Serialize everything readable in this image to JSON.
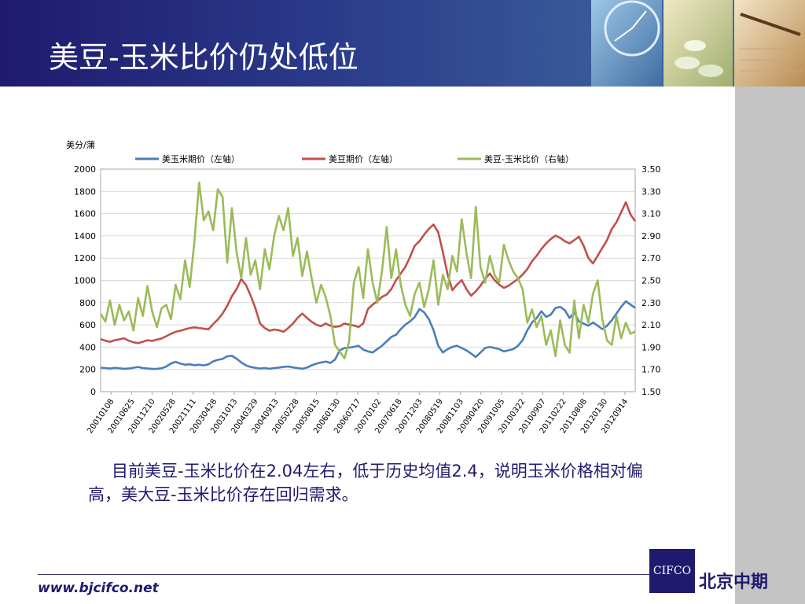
{
  "slide": {
    "title": "美豆-玉米比价仍处低位",
    "caption": "目前美豆-玉米比价在2.04左右，低于历史均值2.4，说明玉米价格相对偏高，美大豆-玉米比价存在回归需求。",
    "footer_url": "www.bjcifco.net",
    "logo_text": "CIFCO",
    "logo_name": "北京中期"
  },
  "chart_data": {
    "type": "line",
    "ylabel": "美分/蒲",
    "y_left": {
      "ylim": [
        0,
        2000
      ],
      "ticks": [
        0,
        200,
        400,
        600,
        800,
        1000,
        1200,
        1400,
        1600,
        1800,
        2000
      ]
    },
    "y_right": {
      "ylim": [
        1.5,
        3.5
      ],
      "ticks": [
        "1.50",
        "1.70",
        "1.90",
        "2.10",
        "2.30",
        "2.50",
        "2.70",
        "2.90",
        "3.10",
        "3.30",
        "3.50"
      ]
    },
    "x_ticks": [
      "20010108",
      "20010625",
      "20011210",
      "20020528",
      "20021111",
      "20030428",
      "20031013",
      "20040329",
      "20040913",
      "20050228",
      "20050815",
      "20060130",
      "20060717",
      "20070102",
      "20070618",
      "20071203",
      "20080519",
      "20081103",
      "20090420",
      "20091005",
      "20100322",
      "20100907",
      "20110222",
      "20110808",
      "20120130",
      "20120914"
    ],
    "grid": true,
    "legend_position": "top",
    "series": [
      {
        "name": "美玉米期价（左轴）",
        "axis": "left",
        "color": "#4a7ebb",
        "values": [
          215,
          212,
          208,
          214,
          210,
          206,
          208,
          215,
          222,
          212,
          208,
          204,
          206,
          210,
          226,
          254,
          268,
          252,
          242,
          246,
          238,
          242,
          236,
          246,
          272,
          286,
          294,
          318,
          322,
          296,
          262,
          236,
          222,
          214,
          208,
          212,
          206,
          212,
          216,
          222,
          226,
          218,
          212,
          206,
          216,
          236,
          252,
          262,
          270,
          258,
          288,
          372,
          392,
          396,
          402,
          412,
          378,
          362,
          352,
          382,
          412,
          452,
          492,
          512,
          562,
          602,
          632,
          672,
          742,
          712,
          652,
          552,
          412,
          352,
          382,
          402,
          412,
          392,
          372,
          342,
          312,
          352,
          392,
          402,
          392,
          382,
          362,
          372,
          382,
          412,
          462,
          552,
          622,
          662,
          722,
          672,
          692,
          752,
          762,
          732,
          662,
          712,
          632,
          612,
          592,
          622,
          592,
          562,
          592,
          642,
          702,
          762,
          812,
          782,
          752
        ]
      },
      {
        "name": "美豆期价（左轴）",
        "axis": "left",
        "color": "#c0504d",
        "values": [
          472,
          458,
          448,
          462,
          470,
          480,
          458,
          444,
          436,
          448,
          462,
          456,
          468,
          478,
          498,
          520,
          538,
          548,
          560,
          572,
          578,
          572,
          566,
          560,
          608,
          648,
          702,
          772,
          858,
          922,
          1012,
          958,
          862,
          752,
          612,
          572,
          548,
          558,
          552,
          538,
          572,
          612,
          662,
          702,
          662,
          628,
          602,
          588,
          612,
          592,
          582,
          588,
          612,
          602,
          594,
          580,
          612,
          742,
          782,
          812,
          852,
          872,
          922,
          1002,
          1062,
          1122,
          1212,
          1312,
          1352,
          1412,
          1462,
          1502,
          1432,
          1252,
          1052,
          912,
          962,
          1002,
          922,
          862,
          902,
          952,
          1012,
          1062,
          1002,
          962,
          932,
          952,
          982,
          1012,
          1052,
          1102,
          1172,
          1222,
          1282,
          1332,
          1372,
          1402,
          1382,
          1352,
          1332,
          1362,
          1392,
          1312,
          1202,
          1152,
          1222,
          1292,
          1362,
          1462,
          1522,
          1612,
          1702,
          1592,
          1532
        ]
      },
      {
        "name": "美豆-玉米比价（右轴）",
        "axis": "right",
        "color": "#9bbb59",
        "values": [
          2.2,
          2.13,
          2.32,
          2.1,
          2.28,
          2.14,
          2.22,
          2.05,
          2.34,
          2.18,
          2.45,
          2.22,
          2.08,
          2.25,
          2.28,
          2.15,
          2.46,
          2.33,
          2.68,
          2.44,
          2.85,
          3.38,
          3.04,
          3.12,
          2.95,
          3.32,
          3.25,
          2.66,
          3.15,
          2.75,
          2.52,
          2.88,
          2.55,
          2.68,
          2.42,
          2.78,
          2.6,
          2.9,
          3.08,
          2.95,
          3.15,
          2.72,
          2.88,
          2.54,
          2.76,
          2.52,
          2.3,
          2.46,
          2.35,
          2.18,
          1.92,
          1.86,
          1.8,
          1.95,
          2.48,
          2.62,
          2.34,
          2.78,
          2.48,
          2.3,
          2.58,
          2.98,
          2.52,
          2.78,
          2.46,
          2.28,
          2.18,
          2.38,
          2.48,
          2.26,
          2.42,
          2.68,
          2.28,
          2.55,
          2.42,
          2.72,
          2.58,
          3.05,
          2.75,
          2.52,
          3.16,
          2.62,
          2.48,
          2.72,
          2.55,
          2.48,
          2.82,
          2.68,
          2.58,
          2.52,
          2.42,
          2.12,
          2.24,
          2.08,
          2.18,
          1.92,
          2.05,
          1.82,
          2.14,
          1.92,
          1.85,
          2.32,
          1.98,
          2.28,
          2.12,
          2.38,
          2.5,
          2.15,
          1.96,
          1.92,
          2.18,
          1.98,
          2.12,
          2.02,
          2.04
        ]
      }
    ]
  }
}
